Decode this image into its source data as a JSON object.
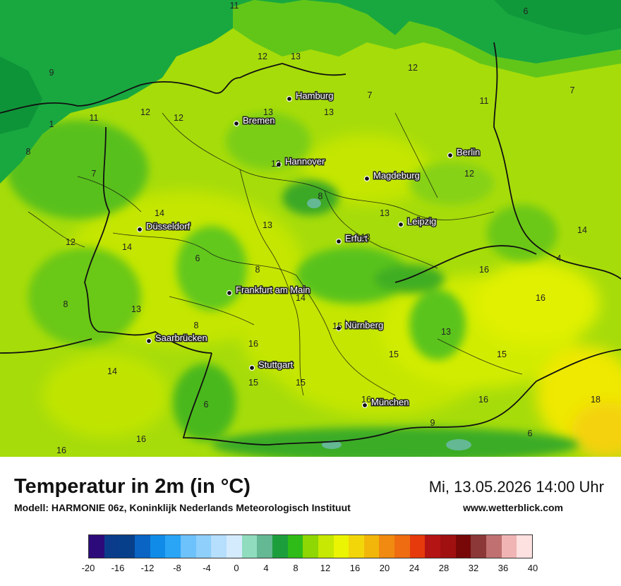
{
  "map": {
    "cities": [
      {
        "name": "Hamburg"
      },
      {
        "name": "Bremen"
      },
      {
        "name": "Hannover"
      },
      {
        "name": "Berlin"
      },
      {
        "name": "Magdeburg"
      },
      {
        "name": "Leipzig"
      },
      {
        "name": "Düsseldorf"
      },
      {
        "name": "Erfurt"
      },
      {
        "name": "Frankfurt am Main"
      },
      {
        "name": "Nürnberg"
      },
      {
        "name": "Saarbrücken"
      },
      {
        "name": "Stuttgart"
      },
      {
        "name": "München"
      }
    ],
    "temperature_labels": [
      "11",
      "6",
      "12",
      "13",
      "12",
      "9",
      "7",
      "11",
      "11",
      "12",
      "12",
      "13",
      "13",
      "7",
      "1",
      "8",
      "7",
      "12",
      "12",
      "14",
      "14",
      "13",
      "13",
      "14",
      "12",
      "6",
      "8",
      "8",
      "13",
      "14",
      "16",
      "8",
      "13",
      "8",
      "16",
      "15",
      "15",
      "13",
      "15",
      "15",
      "14",
      "15",
      "16",
      "6",
      "16",
      "16",
      "6",
      "16",
      "16",
      "18",
      "4",
      "9"
    ]
  },
  "footer": {
    "title": "Temperatur in 2m (in °C)",
    "subtitle": "Modell: HARMONIE 06z, Koninklijk Nederlands Meteorologisch Instituut",
    "datetime": "Mi, 13.05.2026 14:00 Uhr",
    "website": "www.wetterblick.com"
  },
  "legend": {
    "colors": [
      "#2d0a7a",
      "#0b3c8c",
      "#083f8a",
      "#0a64c4",
      "#108ce8",
      "#2aa4f5",
      "#6ec2fb",
      "#8ecffc",
      "#b6defd",
      "#d4ebfe",
      "#8fdcbe",
      "#64b894",
      "#1d9e3d",
      "#2fbc18",
      "#8ed604",
      "#c6e802",
      "#ebf402",
      "#f2d60a",
      "#f2b60a",
      "#f08a10",
      "#ef6c10",
      "#e63a0c",
      "#b41414",
      "#a01010",
      "#780808",
      "#8c3838",
      "#c07070",
      "#f0b4b4",
      "#fde0e0"
    ],
    "ticks": [
      "-20",
      "-16",
      "-12",
      "-8",
      "-4",
      "0",
      "4",
      "8",
      "12",
      "16",
      "20",
      "24",
      "28",
      "32",
      "36",
      "40"
    ]
  }
}
